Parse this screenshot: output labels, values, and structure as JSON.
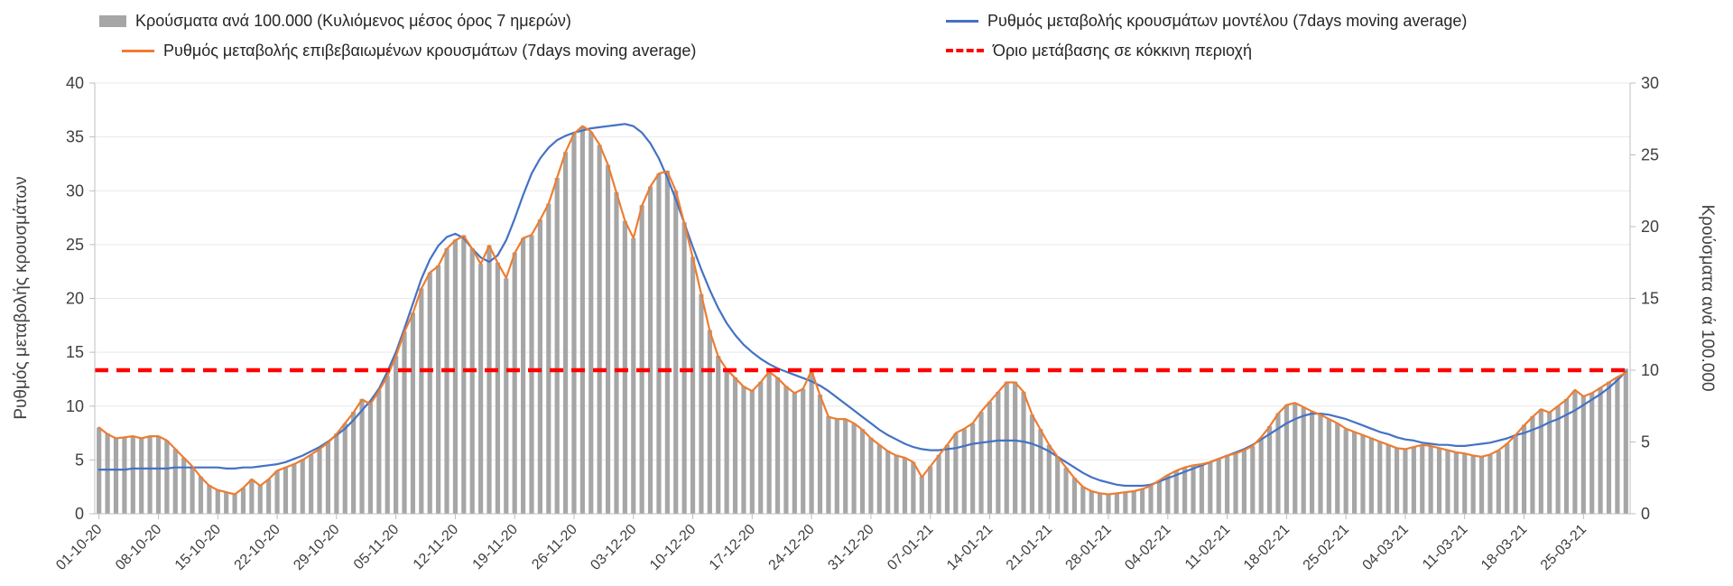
{
  "legend": {
    "items": [
      {
        "label": "Κρούσματα ανά 100.000 (Κυλιόμενος μέσος όρος 7 ημερών)",
        "swatch": "bar",
        "color": "#a6a6a6"
      },
      {
        "label": "Ρυθμός μεταβολής κρουσμάτων μοντέλου (7days moving average)",
        "swatch": "line",
        "color": "#4472c4"
      },
      {
        "label": "Ρυθμός μεταβολής επιβεβαιωμένων κρουσμάτων (7days moving average)",
        "swatch": "line",
        "color": "#ed7d31"
      },
      {
        "label": "Όριο μετάβασης σε κόκκινη περιοχή",
        "swatch": "dashed-line",
        "color": "#ff0000"
      }
    ]
  },
  "chart_data": {
    "type": "combo",
    "title": "",
    "grid": true,
    "legend_position": "top",
    "points_per_tick": 7,
    "x_tick_labels": [
      "01-10-20",
      "08-10-20",
      "15-10-20",
      "22-10-20",
      "29-10-20",
      "05-11-20",
      "12-11-20",
      "19-11-20",
      "26-11-20",
      "03-12-20",
      "10-12-20",
      "17-12-20",
      "24-12-20",
      "31-12-20",
      "07-01-21",
      "14-01-21",
      "21-01-21",
      "28-01-21",
      "04-02-21",
      "11-02-21",
      "18-02-21",
      "25-02-21",
      "04-03-21",
      "11-03-21",
      "18-03-21",
      "25-03-21"
    ],
    "left_axis": {
      "label": "Ρυθμός μεταβολής κρουσμάτων",
      "min": 0,
      "max": 40,
      "step": 5
    },
    "right_axis": {
      "label": "Κρούσματα ανά 100.000",
      "min": 0,
      "max": 30,
      "step": 5
    },
    "threshold": {
      "name": "Όριο μετάβασης σε κόκκινη περιοχή",
      "axis": "right",
      "value": 10,
      "color": "#ff0000",
      "style": "dashed"
    },
    "series": [
      {
        "id": "cases-per-100k-bars",
        "name": "Κρούσματα ανά 100.000 (Κυλιόμενος μέσος όρος 7 ημερών)",
        "type": "bar",
        "axis": "right",
        "color": "#a6a6a6",
        "values": [
          6.0,
          5.6,
          5.3,
          5.3,
          5.4,
          5.3,
          5.4,
          5.4,
          5.1,
          4.5,
          3.9,
          3.3,
          2.6,
          2.0,
          1.7,
          1.5,
          1.4,
          1.8,
          2.4,
          2.0,
          2.4,
          3.0,
          3.2,
          3.5,
          3.8,
          4.1,
          4.5,
          5.0,
          5.6,
          6.3,
          7.1,
          8.0,
          7.7,
          8.6,
          9.6,
          11.0,
          12.7,
          14.0,
          15.7,
          16.8,
          17.3,
          18.5,
          19.1,
          19.4,
          18.5,
          17.4,
          18.7,
          17.5,
          16.4,
          18.2,
          19.2,
          19.4,
          20.5,
          21.6,
          23.4,
          25.2,
          26.5,
          27.0,
          26.6,
          25.7,
          24.3,
          22.4,
          20.4,
          19.2,
          21.5,
          22.8,
          23.7,
          23.9,
          22.5,
          20.3,
          17.9,
          15.3,
          12.8,
          11.0,
          10.1,
          9.5,
          8.9,
          8.6,
          9.2,
          9.9,
          9.5,
          8.9,
          8.4,
          8.7,
          10.0,
          8.3,
          6.8,
          6.6,
          6.6,
          6.3,
          5.9,
          5.3,
          4.8,
          4.4,
          4.1,
          3.9,
          3.6,
          2.6,
          3.3,
          4.1,
          4.8,
          5.6,
          5.9,
          6.3,
          7.1,
          7.8,
          8.5,
          9.2,
          9.2,
          8.5,
          6.9,
          5.9,
          4.8,
          4.0,
          3.2,
          2.5,
          1.9,
          1.6,
          1.4,
          1.4,
          1.4,
          1.5,
          1.6,
          1.7,
          2.0,
          2.3,
          2.7,
          3.0,
          3.2,
          3.4,
          3.5,
          3.6,
          3.8,
          4.1,
          4.2,
          4.4,
          4.7,
          5.3,
          6.1,
          7.0,
          7.6,
          7.7,
          7.4,
          7.1,
          6.9,
          6.6,
          6.3,
          5.9,
          5.7,
          5.5,
          5.3,
          5.0,
          4.8,
          4.6,
          4.5,
          4.7,
          4.8,
          4.7,
          4.6,
          4.4,
          4.3,
          4.2,
          4.1,
          4.0,
          4.1,
          4.4,
          4.9,
          5.5,
          6.2,
          6.8,
          7.3,
          7.1,
          7.5,
          8.0,
          8.6,
          8.2,
          8.4,
          8.8,
          9.2,
          9.5,
          10.1
        ]
      },
      {
        "id": "model-rate-line",
        "name": "Ρυθμός μεταβολής κρουσμάτων μοντέλου (7days moving average)",
        "type": "line",
        "axis": "left",
        "color": "#4472c4",
        "values": [
          4.1,
          4.1,
          4.1,
          4.1,
          4.2,
          4.2,
          4.2,
          4.2,
          4.2,
          4.3,
          4.3,
          4.3,
          4.3,
          4.3,
          4.3,
          4.2,
          4.2,
          4.3,
          4.3,
          4.4,
          4.5,
          4.6,
          4.8,
          5.1,
          5.4,
          5.8,
          6.2,
          6.7,
          7.3,
          7.9,
          8.7,
          9.6,
          10.5,
          11.6,
          13.2,
          15.0,
          17.2,
          19.5,
          21.8,
          23.6,
          24.9,
          25.7,
          26.0,
          25.6,
          24.6,
          23.8,
          23.4,
          24.0,
          25.4,
          27.4,
          29.6,
          31.6,
          33.0,
          34.0,
          34.7,
          35.1,
          35.4,
          35.6,
          35.8,
          35.9,
          36.0,
          36.1,
          36.2,
          36.0,
          35.4,
          34.4,
          33.0,
          31.2,
          29.2,
          27.0,
          24.8,
          22.7,
          20.8,
          19.1,
          17.7,
          16.6,
          15.7,
          15.0,
          14.4,
          13.9,
          13.5,
          13.2,
          12.9,
          12.6,
          12.3,
          11.9,
          11.4,
          10.8,
          10.2,
          9.6,
          9.0,
          8.4,
          7.8,
          7.3,
          6.9,
          6.5,
          6.2,
          6.0,
          5.9,
          5.9,
          6.0,
          6.1,
          6.3,
          6.5,
          6.6,
          6.7,
          6.8,
          6.8,
          6.8,
          6.7,
          6.5,
          6.2,
          5.8,
          5.3,
          4.8,
          4.3,
          3.8,
          3.4,
          3.1,
          2.9,
          2.7,
          2.6,
          2.6,
          2.6,
          2.7,
          3.0,
          3.3,
          3.6,
          3.9,
          4.2,
          4.5,
          4.8,
          5.1,
          5.4,
          5.7,
          6.0,
          6.4,
          6.9,
          7.4,
          7.9,
          8.4,
          8.8,
          9.1,
          9.3,
          9.3,
          9.2,
          9.0,
          8.8,
          8.5,
          8.2,
          7.9,
          7.6,
          7.4,
          7.1,
          6.9,
          6.8,
          6.6,
          6.5,
          6.4,
          6.4,
          6.3,
          6.3,
          6.4,
          6.5,
          6.6,
          6.8,
          7.0,
          7.3,
          7.5,
          7.8,
          8.1,
          8.5,
          8.8,
          9.2,
          9.6,
          10.1,
          10.6,
          11.1,
          11.7,
          12.4,
          13.2
        ]
      },
      {
        "id": "confirmed-rate-line",
        "name": "Ρυθμός μεταβολής επιβεβαιωμένων κρουσμάτων (7days moving average)",
        "type": "line",
        "axis": "left",
        "color": "#ed7d31",
        "values": [
          8.0,
          7.4,
          7.0,
          7.1,
          7.2,
          7.0,
          7.2,
          7.2,
          6.8,
          6.0,
          5.2,
          4.4,
          3.4,
          2.6,
          2.2,
          2.0,
          1.8,
          2.4,
          3.2,
          2.6,
          3.2,
          4.0,
          4.3,
          4.6,
          5.0,
          5.5,
          6.0,
          6.6,
          7.4,
          8.4,
          9.4,
          10.6,
          10.2,
          11.4,
          12.8,
          14.6,
          16.9,
          18.6,
          20.9,
          22.4,
          23.0,
          24.6,
          25.4,
          25.8,
          24.6,
          23.2,
          24.9,
          23.3,
          21.9,
          24.2,
          25.6,
          25.9,
          27.3,
          28.8,
          31.2,
          33.6,
          35.3,
          36.0,
          35.5,
          34.3,
          32.4,
          29.8,
          27.2,
          25.6,
          28.6,
          30.4,
          31.6,
          31.8,
          30.0,
          27.0,
          23.8,
          20.4,
          17.0,
          14.6,
          13.4,
          12.6,
          11.8,
          11.4,
          12.2,
          13.2,
          12.6,
          11.8,
          11.2,
          11.6,
          13.3,
          11.0,
          9.0,
          8.8,
          8.8,
          8.4,
          7.8,
          7.0,
          6.4,
          5.8,
          5.4,
          5.2,
          4.8,
          3.4,
          4.4,
          5.4,
          6.4,
          7.5,
          7.9,
          8.4,
          9.5,
          10.4,
          11.3,
          12.2,
          12.2,
          11.3,
          9.2,
          7.8,
          6.4,
          5.3,
          4.3,
          3.3,
          2.5,
          2.1,
          1.9,
          1.8,
          1.9,
          2.0,
          2.1,
          2.3,
          2.6,
          3.1,
          3.6,
          4.0,
          4.3,
          4.5,
          4.6,
          4.8,
          5.1,
          5.4,
          5.6,
          5.9,
          6.3,
          7.1,
          8.1,
          9.3,
          10.1,
          10.3,
          9.9,
          9.5,
          9.2,
          8.8,
          8.4,
          7.9,
          7.6,
          7.3,
          7.0,
          6.7,
          6.4,
          6.1,
          6.0,
          6.2,
          6.4,
          6.3,
          6.1,
          5.9,
          5.7,
          5.6,
          5.4,
          5.3,
          5.5,
          5.9,
          6.5,
          7.3,
          8.2,
          9.0,
          9.7,
          9.4,
          10.0,
          10.6,
          11.5,
          10.9,
          11.2,
          11.7,
          12.2,
          12.7,
          13.1
        ]
      }
    ]
  }
}
